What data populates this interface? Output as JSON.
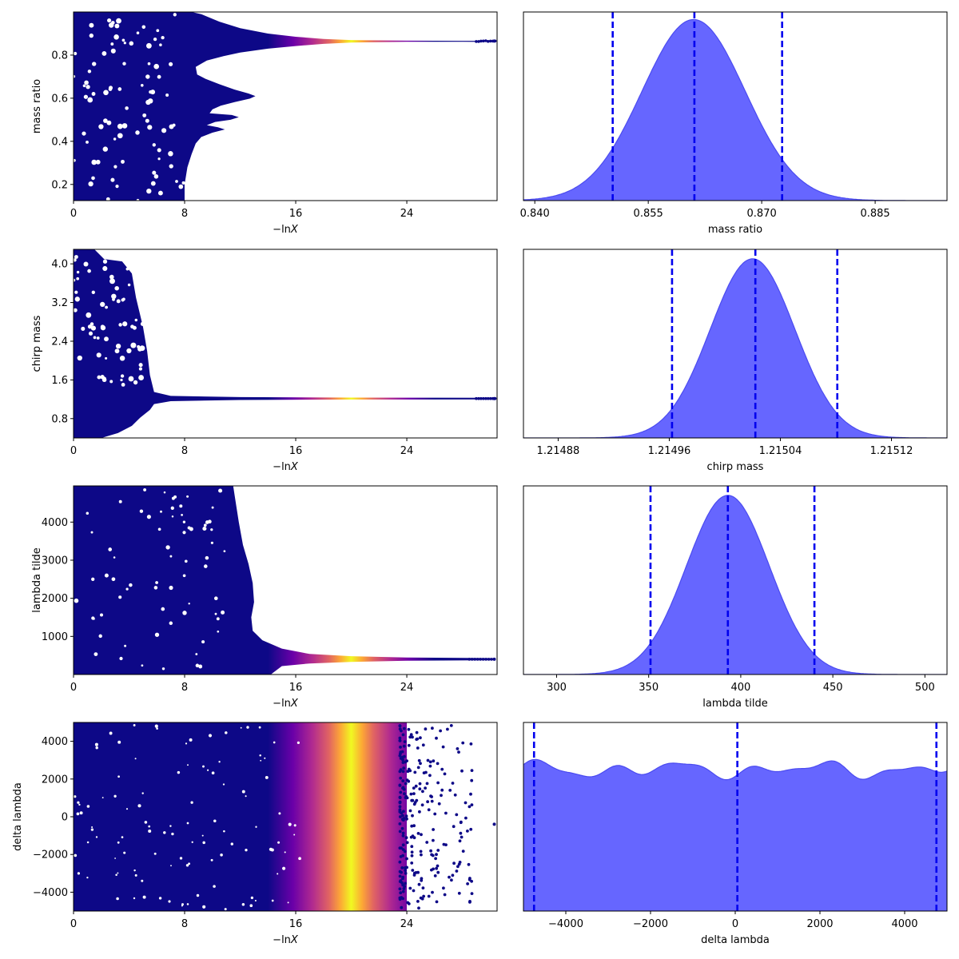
{
  "colors": {
    "trace_base": "#0d0887",
    "trace_ramp": [
      "#0d0887",
      "#6a00a8",
      "#b12a90",
      "#e16462",
      "#fca636",
      "#f0f921"
    ],
    "posterior_fill": "#6666ff",
    "posterior_edge": "#4b4bf0",
    "quantile_line": "#0000ee"
  },
  "chart_data": [
    {
      "type": "scatter",
      "panel": "trace",
      "xlabel": "−ln",
      "xlabel_italic": "X",
      "ylabel": "mass ratio",
      "xlim": [
        0,
        30.5
      ],
      "ylim": [
        0.125,
        1.0
      ],
      "xticks": [
        0,
        8,
        16,
        24
      ],
      "xtick_labels": [
        "0",
        "8",
        "16",
        "24"
      ],
      "yticks": [
        0.2,
        0.4,
        0.6,
        0.8
      ],
      "ytick_labels": [
        "0.2",
        "0.4",
        "0.6",
        "0.8"
      ],
      "peak_x": 20.0,
      "converged_value": 0.865,
      "last_x": 30.3
    },
    {
      "type": "area",
      "panel": "posterior",
      "xlabel": "mass ratio",
      "xlim": [
        0.8385,
        0.8945
      ],
      "xticks": [
        0.84,
        0.855,
        0.87,
        0.885
      ],
      "xtick_labels": [
        "0.840",
        "0.855",
        "0.870",
        "0.885"
      ],
      "mean": 0.861,
      "sd": 0.0068,
      "quantiles": [
        0.8503,
        0.8611,
        0.8727
      ],
      "peak_fraction": 0.96
    },
    {
      "type": "scatter",
      "panel": "trace",
      "xlabel": "−ln",
      "xlabel_italic": "X",
      "ylabel": "chirp mass",
      "xlim": [
        0,
        30.5
      ],
      "ylim": [
        0.4,
        4.3
      ],
      "xticks": [
        0,
        8,
        16,
        24
      ],
      "xtick_labels": [
        "0",
        "8",
        "16",
        "24"
      ],
      "yticks": [
        0.8,
        1.6,
        2.4,
        3.2,
        4.0
      ],
      "ytick_labels": [
        "0.8",
        "1.6",
        "2.4",
        "3.2",
        "4.0"
      ],
      "peak_x": 20.0,
      "converged_value": 1.215,
      "last_x": 30.3
    },
    {
      "type": "area",
      "panel": "posterior",
      "xlabel": "chirp mass",
      "xlim": [
        1.214855,
        1.21516
      ],
      "xticks": [
        1.21488,
        1.21496,
        1.21504,
        1.21512
      ],
      "xtick_labels": [
        "1.21488",
        "1.21496",
        "1.21504",
        "1.21512"
      ],
      "mean": 1.21502,
      "sd": 3.05e-05,
      "quantiles": [
        1.214962,
        1.215022,
        1.215081
      ],
      "peak_fraction": 0.95
    },
    {
      "type": "scatter",
      "panel": "trace",
      "xlabel": "−ln",
      "xlabel_italic": "X",
      "ylabel": "lambda tilde",
      "xlim": [
        0,
        30.5
      ],
      "ylim": [
        0,
        4950
      ],
      "xticks": [
        0,
        8,
        16,
        24
      ],
      "xtick_labels": [
        "0",
        "8",
        "16",
        "24"
      ],
      "yticks": [
        1000,
        2000,
        3000,
        4000
      ],
      "ytick_labels": [
        "1000",
        "2000",
        "3000",
        "4000"
      ],
      "peak_x": 20.0,
      "converged_value": 400,
      "last_x": 30.3
    },
    {
      "type": "area",
      "panel": "posterior",
      "xlabel": "lambda tilde",
      "xlim": [
        282,
        512
      ],
      "xticks": [
        300,
        350,
        400,
        450,
        500
      ],
      "xtick_labels": [
        "300",
        "350",
        "400",
        "450",
        "500"
      ],
      "mean": 393,
      "sd": 22.5,
      "quantiles": [
        351,
        393,
        440
      ],
      "peak_fraction": 0.95
    },
    {
      "type": "scatter",
      "panel": "trace",
      "xlabel": "−ln",
      "xlabel_italic": "X",
      "ylabel": "delta lambda",
      "xlim": [
        0,
        30.5
      ],
      "ylim": [
        -5000,
        5000
      ],
      "xticks": [
        0,
        8,
        16,
        24
      ],
      "xtick_labels": [
        "0",
        "8",
        "16",
        "24"
      ],
      "yticks": [
        -4000,
        -2000,
        0,
        2000,
        4000
      ],
      "ytick_labels": [
        "−4000",
        "−2000",
        "0",
        "2000",
        "4000"
      ],
      "peak_x": 20.0,
      "band": [
        17.5,
        24.0
      ],
      "last_x": 30.3
    },
    {
      "type": "area",
      "panel": "posterior",
      "xlabel": "delta lambda",
      "xlim": [
        -5000,
        5000
      ],
      "xticks": [
        -4000,
        -2000,
        0,
        2000,
        4000
      ],
      "xtick_labels": [
        "−4000",
        "−2000",
        "0",
        "2000",
        "4000"
      ],
      "uniform": true,
      "level_fraction": 0.75,
      "wiggle_fraction": 0.06,
      "quantiles": [
        -4750,
        50,
        4750
      ]
    }
  ]
}
